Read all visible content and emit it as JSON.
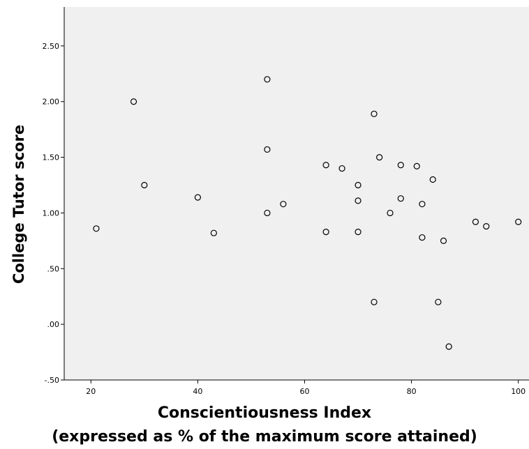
{
  "chart_data": {
    "type": "scatter",
    "xlabel": "Conscientiousness Index",
    "xlabel_sub": "(expressed as % of the maximum score attained)",
    "ylabel": "College Tutor score",
    "xlim": [
      15,
      102
    ],
    "ylim": [
      -0.5,
      2.85
    ],
    "x_ticks": [
      {
        "value": 20,
        "label": "20"
      },
      {
        "value": 40,
        "label": "40"
      },
      {
        "value": 60,
        "label": "60"
      },
      {
        "value": 80,
        "label": "80"
      },
      {
        "value": 100,
        "label": "100"
      }
    ],
    "y_ticks": [
      {
        "value": -0.5,
        "label": "-.50"
      },
      {
        "value": 0,
        "label": ".00"
      },
      {
        "value": 0.5,
        "label": ".50"
      },
      {
        "value": 1.0,
        "label": "1.00"
      },
      {
        "value": 1.5,
        "label": "1.50"
      },
      {
        "value": 2.0,
        "label": "2.00"
      },
      {
        "value": 2.5,
        "label": "2.50"
      }
    ],
    "grid": false,
    "marker": "open-circle",
    "colors": {
      "background": "#f0f0f0",
      "marker_stroke": "#000000",
      "axis": "#000000"
    },
    "points": [
      {
        "x": 21,
        "y": 0.86
      },
      {
        "x": 28,
        "y": 2.0
      },
      {
        "x": 30,
        "y": 1.25
      },
      {
        "x": 40,
        "y": 1.14
      },
      {
        "x": 43,
        "y": 0.82
      },
      {
        "x": 53,
        "y": 2.2
      },
      {
        "x": 53,
        "y": 1.57
      },
      {
        "x": 53,
        "y": 1.0
      },
      {
        "x": 56,
        "y": 1.08
      },
      {
        "x": 64,
        "y": 1.43
      },
      {
        "x": 64,
        "y": 0.83
      },
      {
        "x": 67,
        "y": 1.4
      },
      {
        "x": 70,
        "y": 1.25
      },
      {
        "x": 70,
        "y": 1.11
      },
      {
        "x": 70,
        "y": 0.83
      },
      {
        "x": 73,
        "y": 1.89
      },
      {
        "x": 73,
        "y": 0.2
      },
      {
        "x": 74,
        "y": 1.5
      },
      {
        "x": 76,
        "y": 1.0
      },
      {
        "x": 78,
        "y": 1.43
      },
      {
        "x": 78,
        "y": 1.13
      },
      {
        "x": 81,
        "y": 1.42
      },
      {
        "x": 82,
        "y": 1.08
      },
      {
        "x": 82,
        "y": 0.78
      },
      {
        "x": 84,
        "y": 1.3
      },
      {
        "x": 85,
        "y": 0.2
      },
      {
        "x": 86,
        "y": 0.75
      },
      {
        "x": 87,
        "y": -0.2
      },
      {
        "x": 92,
        "y": 0.92
      },
      {
        "x": 94,
        "y": 0.88
      },
      {
        "x": 100,
        "y": 0.92
      }
    ]
  }
}
